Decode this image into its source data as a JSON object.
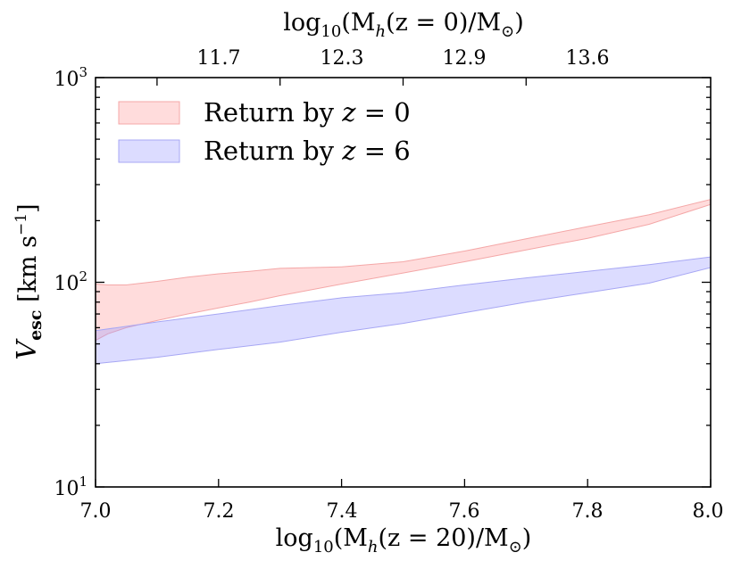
{
  "chart_data": {
    "type": "area",
    "x_axis": {
      "label": "log10(Mh(z = 20)/M⊙)",
      "range": [
        7.0,
        8.0
      ],
      "ticks": [
        "7.0",
        "7.2",
        "7.4",
        "7.6",
        "7.8",
        "8.0"
      ],
      "tick_values": [
        7.0,
        7.2,
        7.4,
        7.6,
        7.8,
        8.0
      ]
    },
    "top_axis": {
      "label": "log10(Mh(z = 0)/M⊙)",
      "ticks": [
        "11.7",
        "12.3",
        "12.9",
        "13.6"
      ],
      "tick_positions": [
        7.1,
        7.3,
        7.5,
        7.7
      ]
    },
    "y_axis": {
      "label": "Vesc [km s−1]",
      "scale": "log",
      "range": [
        10,
        1000
      ],
      "ticks": [
        {
          "base": "10",
          "exp": "1",
          "value": 10
        },
        {
          "base": "10",
          "exp": "2",
          "value": 100
        },
        {
          "base": "10",
          "exp": "3",
          "value": 1000
        }
      ]
    },
    "legend": {
      "position": "top-left"
    },
    "series": [
      {
        "name": "Return by z = 0",
        "color": "#ff9b9b",
        "edge_color": "#f4a7a7",
        "x": [
          7.0,
          7.02,
          7.05,
          7.1,
          7.15,
          7.2,
          7.25,
          7.3,
          7.4,
          7.5,
          7.6,
          7.7,
          7.8,
          7.9,
          8.0
        ],
        "upper": [
          98,
          97,
          97,
          101,
          106,
          110,
          113,
          117,
          119,
          126,
          142,
          163,
          187,
          214,
          254
        ],
        "lower": [
          52,
          56,
          60,
          65,
          70,
          75,
          80,
          86,
          98,
          111,
          126,
          144,
          164,
          192,
          240
        ]
      },
      {
        "name": "Return by z = 6",
        "color": "#9b9bff",
        "edge_color": "#a7a7f4",
        "x": [
          7.0,
          7.1,
          7.2,
          7.3,
          7.4,
          7.5,
          7.6,
          7.7,
          7.8,
          7.9,
          8.0
        ],
        "upper": [
          58,
          64,
          70,
          77,
          84,
          89,
          97,
          105,
          113,
          122,
          133
        ],
        "lower": [
          40,
          43,
          47,
          51,
          57,
          63,
          71,
          80,
          89,
          99,
          118
        ]
      }
    ]
  },
  "text": {
    "top_label": {
      "pre": "log",
      "sub": "10",
      "mid": "(M",
      "italic_sub": "h",
      "post": "(z = 0)/M",
      "sun": "⊙",
      "close": ")"
    },
    "bottom_label": {
      "pre": "log",
      "sub": "10",
      "mid": "(M",
      "italic_sub": "h",
      "post": "(z = 20)/M",
      "sun": "⊙",
      "close": ")"
    },
    "y_label": {
      "v": "V",
      "sub": "esc",
      "unit": " [km s",
      "exp": "−1",
      "close": "]"
    },
    "legend": {
      "z0_prefix": "Return by ",
      "z0_var": "z",
      "z0_suffix": " = 0",
      "z6_prefix": "Return by ",
      "z6_var": "z",
      "z6_suffix": " = 6"
    }
  }
}
